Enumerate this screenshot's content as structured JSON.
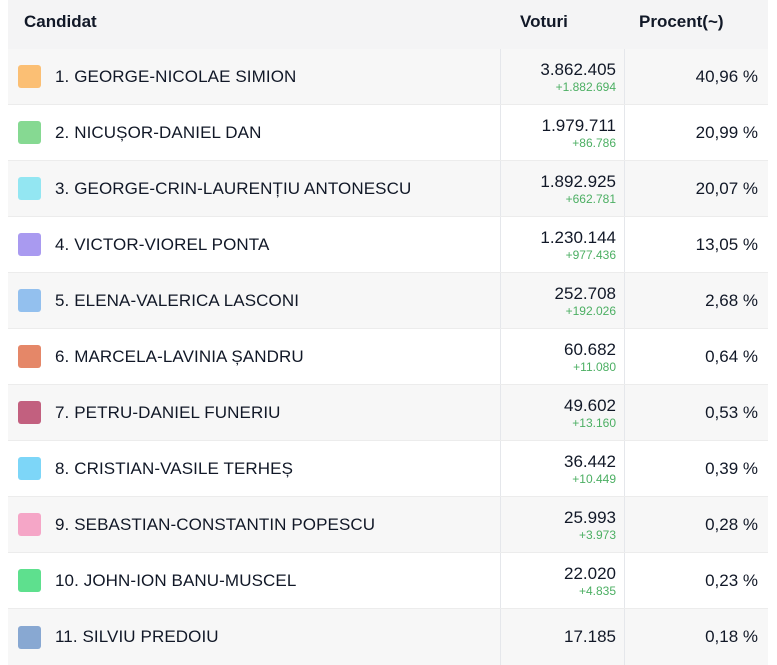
{
  "header": {
    "candidate": "Candidat",
    "votes": "Voturi",
    "percent": "Procent(~)"
  },
  "rows": [
    {
      "name": "1. GEORGE-NICOLAE SIMION",
      "color": "#fbbf74",
      "votes": "3.862.405",
      "delta": "+1.882.694",
      "percent": "40,96 %"
    },
    {
      "name": "2. NICUȘOR-DANIEL DAN",
      "color": "#86d992",
      "votes": "1.979.711",
      "delta": "+86.786",
      "percent": "20,99 %"
    },
    {
      "name": "3. GEORGE-CRIN-LAURENȚIU ANTONESCU",
      "color": "#93e6f2",
      "votes": "1.892.925",
      "delta": "+662.781",
      "percent": "20,07 %"
    },
    {
      "name": "4. VICTOR-VIOREL PONTA",
      "color": "#a99af0",
      "votes": "1.230.144",
      "delta": "+977.436",
      "percent": "13,05 %"
    },
    {
      "name": "5. ELENA-VALERICA LASCONI",
      "color": "#93c0ee",
      "votes": "252.708",
      "delta": "+192.026",
      "percent": "2,68 %"
    },
    {
      "name": "6. MARCELA-LAVINIA ȘANDRU",
      "color": "#e58768",
      "votes": "60.682",
      "delta": "+11.080",
      "percent": "0,64 %"
    },
    {
      "name": "7. PETRU-DANIEL FUNERIU",
      "color": "#c2607f",
      "votes": "49.602",
      "delta": "+13.160",
      "percent": "0,53 %"
    },
    {
      "name": "8. CRISTIAN-VASILE TERHEȘ",
      "color": "#7dd6f8",
      "votes": "36.442",
      "delta": "+10.449",
      "percent": "0,39 %"
    },
    {
      "name": "9. SEBASTIAN-CONSTANTIN POPESCU",
      "color": "#f5a6c7",
      "votes": "25.993",
      "delta": "+3.973",
      "percent": "0,28 %"
    },
    {
      "name": "10. JOHN-ION BANU-MUSCEL",
      "color": "#5ee08e",
      "votes": "22.020",
      "delta": "+4.835",
      "percent": "0,23 %"
    },
    {
      "name": "11. SILVIU PREDOIU",
      "color": "#88a8d2",
      "votes": "17.185",
      "delta": "",
      "percent": "0,18 %"
    }
  ]
}
